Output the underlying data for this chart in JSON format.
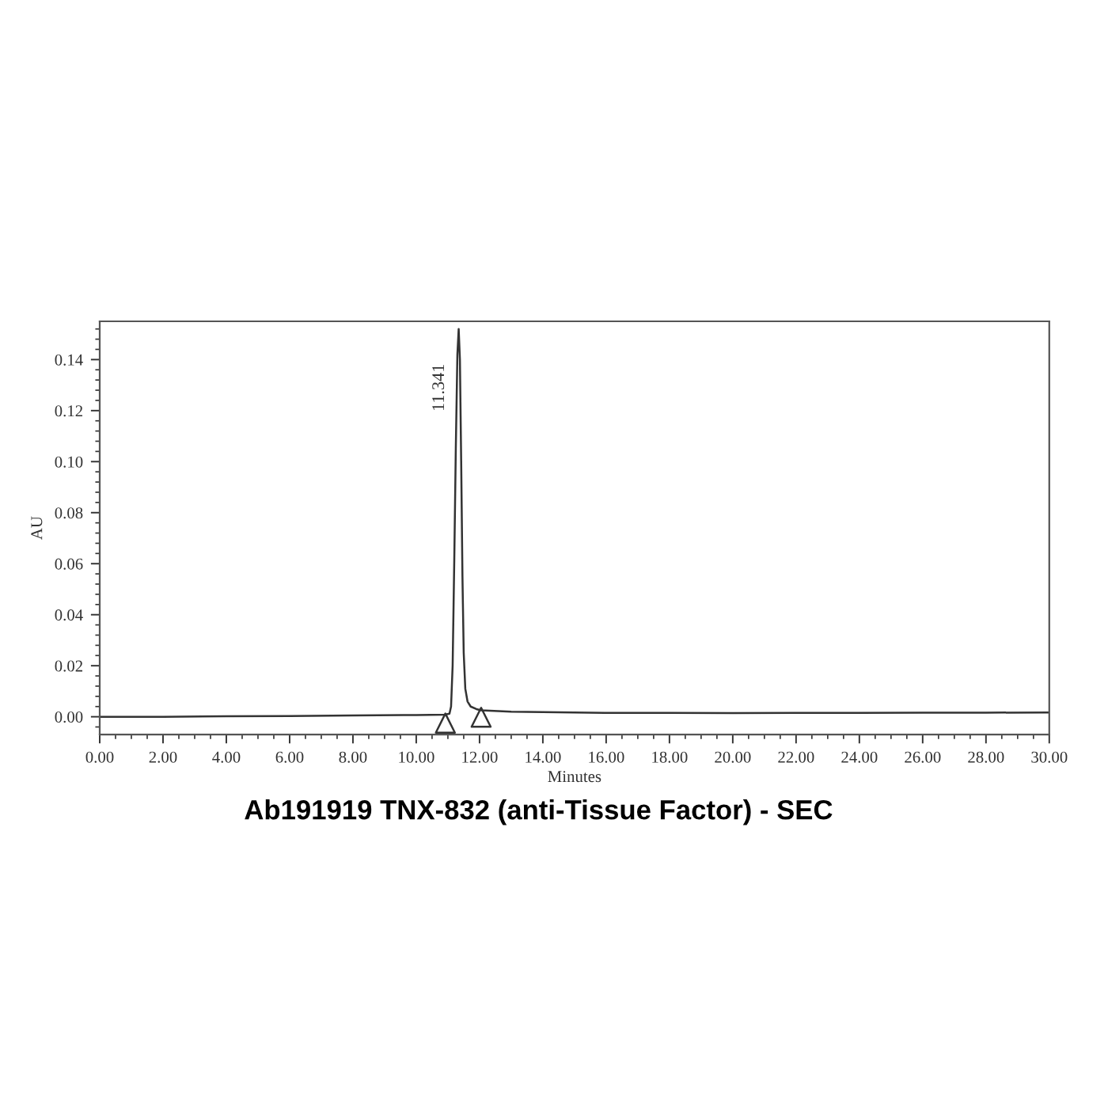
{
  "chart_data": {
    "type": "line",
    "title": "Ab191919 TNX-832 (anti-Tissue Factor) - SEC",
    "xlabel": "Minutes",
    "ylabel": "AU",
    "xlim": [
      0,
      30
    ],
    "xticks": [
      {
        "value": 0,
        "label": "0.00"
      },
      {
        "value": 2,
        "label": "2.00"
      },
      {
        "value": 4,
        "label": "4.00"
      },
      {
        "value": 6,
        "label": "6.00"
      },
      {
        "value": 8,
        "label": "8.00"
      },
      {
        "value": 10,
        "label": "10.00"
      },
      {
        "value": 12,
        "label": "12.00"
      },
      {
        "value": 14,
        "label": "14.00"
      },
      {
        "value": 16,
        "label": "16.00"
      },
      {
        "value": 18,
        "label": "18.00"
      },
      {
        "value": 20,
        "label": "20.00"
      },
      {
        "value": 22,
        "label": "22.00"
      },
      {
        "value": 24,
        "label": "24.00"
      },
      {
        "value": 26,
        "label": "26.00"
      },
      {
        "value": 28,
        "label": "28.00"
      },
      {
        "value": 30,
        "label": "30.00"
      }
    ],
    "ylim": [
      -0.007,
      0.155
    ],
    "yticks": [
      {
        "value": 0,
        "label": "0.00"
      },
      {
        "value": 0.02,
        "label": "0.02"
      },
      {
        "value": 0.04,
        "label": "0.04"
      },
      {
        "value": 0.06,
        "label": "0.06"
      },
      {
        "value": 0.08,
        "label": "0.08"
      },
      {
        "value": 0.1,
        "label": "0.10"
      },
      {
        "value": 0.12,
        "label": "0.12"
      },
      {
        "value": 0.14,
        "label": "0.14"
      }
    ],
    "grid": false,
    "series": [
      {
        "color": "#333333",
        "x": [
          0,
          2,
          4,
          6,
          8,
          10,
          10.9,
          11.05,
          11.1,
          11.15,
          11.2,
          11.25,
          11.3,
          11.341,
          11.38,
          11.42,
          11.46,
          11.5,
          11.55,
          11.62,
          11.72,
          11.9,
          12.05,
          13,
          14,
          16,
          18,
          20,
          22,
          24,
          26,
          28,
          30
        ],
        "values": [
          0.0,
          0.0,
          0.0002,
          0.0003,
          0.0005,
          0.0007,
          0.0008,
          0.0012,
          0.004,
          0.02,
          0.06,
          0.105,
          0.142,
          0.152,
          0.14,
          0.1,
          0.055,
          0.025,
          0.011,
          0.006,
          0.004,
          0.003,
          0.0025,
          0.002,
          0.0018,
          0.0015,
          0.0015,
          0.0014,
          0.0015,
          0.0015,
          0.0016,
          0.0016,
          0.0017
        ]
      },
      {
        "type": "scatter",
        "marker": "triangle",
        "color": "#333333",
        "x": [
          10.92,
          12.05
        ],
        "values": [
          -0.0025,
          -0.0002
        ]
      }
    ],
    "annotations": [
      {
        "text": "11.341",
        "x": 11.341,
        "y": 0.129
      }
    ]
  }
}
